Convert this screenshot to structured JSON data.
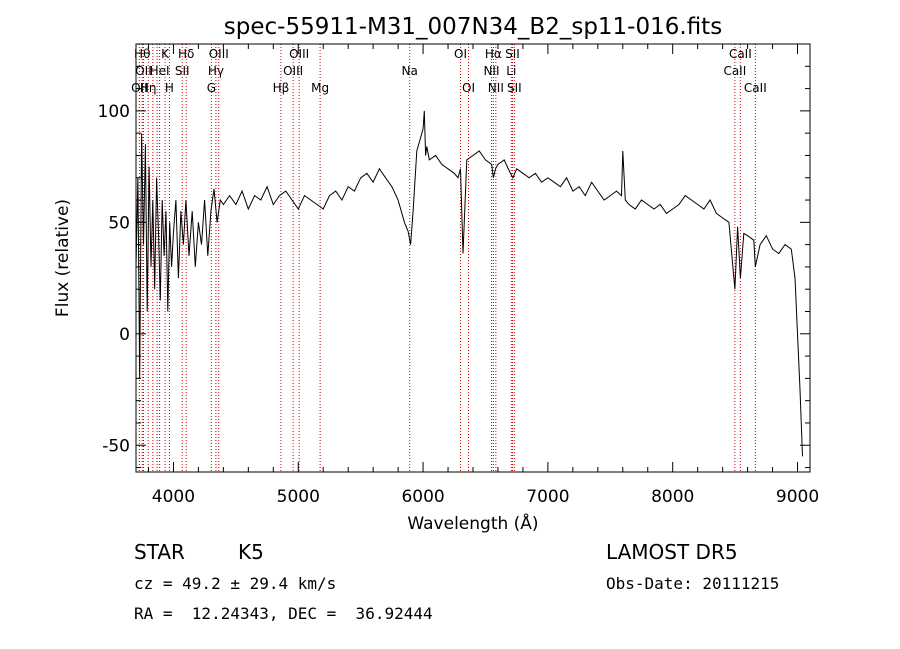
{
  "chart_data": {
    "type": "line",
    "title": "spec-55911-M31_007N34_B2_sp11-016.fits",
    "xlabel": "Wavelength (Å)",
    "ylabel": "Flux (relative)",
    "xlim": [
      3700,
      9100
    ],
    "ylim": [
      -62,
      130
    ],
    "xticks": [
      4000,
      5000,
      6000,
      7000,
      8000,
      9000
    ],
    "yticks": [
      -50,
      0,
      50,
      100
    ],
    "grid": false,
    "line_color": "#000000",
    "marker_color": "#cc0000",
    "series": [
      {
        "x": [
          3700,
          3715,
          3730,
          3745,
          3760,
          3775,
          3790,
          3805,
          3820,
          3835,
          3850,
          3865,
          3880,
          3895,
          3910,
          3925,
          3940,
          3955,
          3970,
          3985,
          4000,
          4020,
          4040,
          4060,
          4080,
          4100,
          4125,
          4150,
          4175,
          4200,
          4225,
          4250,
          4275,
          4300,
          4325,
          4350,
          4375,
          4400,
          4450,
          4500,
          4550,
          4600,
          4650,
          4700,
          4750,
          4800,
          4850,
          4900,
          4950,
          5000,
          5050,
          5100,
          5150,
          5200,
          5250,
          5300,
          5350,
          5400,
          5450,
          5500,
          5550,
          5600,
          5650,
          5700,
          5750,
          5800,
          5850,
          5880,
          5900,
          5920,
          5950,
          5980,
          6000,
          6010,
          6020,
          6030,
          6050,
          6100,
          6150,
          6200,
          6250,
          6280,
          6300,
          6320,
          6350,
          6400,
          6450,
          6500,
          6550,
          6563,
          6580,
          6600,
          6650,
          6700,
          6720,
          6750,
          6800,
          6850,
          6900,
          6950,
          7000,
          7050,
          7100,
          7150,
          7200,
          7250,
          7300,
          7350,
          7400,
          7450,
          7500,
          7550,
          7590,
          7600,
          7620,
          7650,
          7700,
          7750,
          7800,
          7850,
          7900,
          7950,
          8000,
          8050,
          8100,
          8150,
          8200,
          8250,
          8300,
          8350,
          8400,
          8450,
          8498,
          8520,
          8542,
          8570,
          8600,
          8650,
          8662,
          8700,
          8750,
          8800,
          8850,
          8900,
          8950,
          8980,
          9000,
          9020,
          9040
        ],
        "y": [
          30,
          70,
          -20,
          90,
          40,
          85,
          10,
          75,
          30,
          60,
          20,
          70,
          45,
          15,
          60,
          35,
          55,
          10,
          50,
          30,
          45,
          60,
          25,
          55,
          40,
          60,
          35,
          55,
          30,
          50,
          40,
          60,
          35,
          55,
          65,
          50,
          60,
          58,
          62,
          58,
          64,
          56,
          62,
          60,
          66,
          58,
          62,
          64,
          60,
          56,
          62,
          60,
          58,
          56,
          62,
          64,
          60,
          66,
          64,
          70,
          72,
          68,
          74,
          70,
          66,
          60,
          50,
          46,
          40,
          55,
          82,
          88,
          92,
          100,
          80,
          84,
          78,
          80,
          76,
          74,
          72,
          70,
          74,
          36,
          78,
          80,
          82,
          78,
          76,
          70,
          74,
          76,
          78,
          72,
          70,
          74,
          72,
          70,
          72,
          68,
          70,
          68,
          66,
          70,
          64,
          66,
          62,
          68,
          64,
          60,
          62,
          64,
          62,
          82,
          60,
          58,
          56,
          60,
          58,
          56,
          58,
          54,
          56,
          58,
          62,
          60,
          58,
          56,
          60,
          54,
          52,
          50,
          20,
          48,
          25,
          45,
          44,
          42,
          30,
          40,
          44,
          38,
          36,
          40,
          38,
          25,
          0,
          -25,
          -55
        ]
      }
    ],
    "line_markers": [
      {
        "wave": 3727,
        "label": "OII",
        "row": 3
      },
      {
        "wave": 3750,
        "label": "Hθ",
        "row": 1
      },
      {
        "wave": 3760,
        "label": "OII",
        "row": 2
      },
      {
        "wave": 3798,
        "label": "Hη",
        "row": 3
      },
      {
        "wave": 3835,
        "label": "",
        "row": 0
      },
      {
        "wave": 3869,
        "label": "",
        "row": 0
      },
      {
        "wave": 3889,
        "label": "HeI",
        "row": 2
      },
      {
        "wave": 3933,
        "label": "K",
        "row": 1
      },
      {
        "wave": 3968,
        "label": "H",
        "row": 3
      },
      {
        "wave": 4070,
        "label": "SII",
        "row": 2
      },
      {
        "wave": 4102,
        "label": "Hδ",
        "row": 1
      },
      {
        "wave": 4304,
        "label": "G",
        "row": 3
      },
      {
        "wave": 4340,
        "label": "Hγ",
        "row": 2
      },
      {
        "wave": 4363,
        "label": "OIII",
        "row": 1
      },
      {
        "wave": 4861,
        "label": "Hβ",
        "row": 3
      },
      {
        "wave": 4959,
        "label": "OIII",
        "row": 2
      },
      {
        "wave": 5007,
        "label": "OIII",
        "row": 1
      },
      {
        "wave": 5175,
        "label": "Mg",
        "row": 3
      },
      {
        "wave": 5893,
        "label": "Na",
        "row": 2
      },
      {
        "wave": 6300,
        "label": "OI",
        "row": 1
      },
      {
        "wave": 6364,
        "label": "OI",
        "row": 3
      },
      {
        "wave": 6548,
        "label": "NII",
        "row": 2
      },
      {
        "wave": 6563,
        "label": "Hα",
        "row": 1
      },
      {
        "wave": 6583,
        "label": "NII",
        "row": 3
      },
      {
        "wave": 6707,
        "label": "Li",
        "row": 2
      },
      {
        "wave": 6716,
        "label": "SII",
        "row": 1
      },
      {
        "wave": 6731,
        "label": "SII",
        "row": 3
      },
      {
        "wave": 8498,
        "label": "CaII",
        "row": 2
      },
      {
        "wave": 8542,
        "label": "CaII",
        "row": 1
      },
      {
        "wave": 8662,
        "label": "CaII",
        "row": 3
      }
    ]
  },
  "info": {
    "class": "STAR",
    "subclass": "K5",
    "survey": "LAMOST DR5",
    "cz": "cz = 49.2 ± 29.4 km/s",
    "obs_date": "Obs-Date: 20111215",
    "coords": "RA =  12.24343, DEC =  36.92444"
  }
}
